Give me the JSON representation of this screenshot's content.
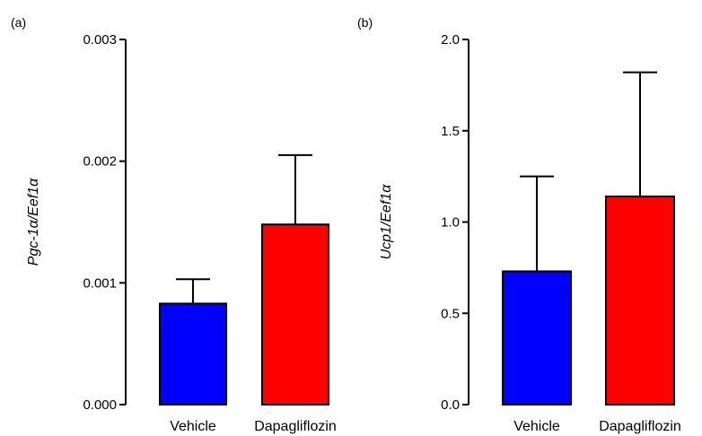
{
  "chart_data": [
    {
      "panel_label": "(a)",
      "type": "bar",
      "categories": [
        "Vehicle",
        "Dapagliflozin"
      ],
      "values": [
        0.00083,
        0.00148
      ],
      "errors": [
        0.0002,
        0.00057
      ],
      "colors": [
        "#0000ff",
        "#ff0000"
      ],
      "ylabel": "Pgc-1α/Eef1α",
      "ylim": [
        0,
        0.003
      ],
      "yticks": [
        "0.000",
        "0.001",
        "0.002",
        "0.003"
      ],
      "yticks_values": [
        0,
        0.001,
        0.002,
        0.003
      ],
      "grid": false,
      "legend": "none"
    },
    {
      "panel_label": "(b)",
      "type": "bar",
      "categories": [
        "Vehicle",
        "Dapagliflozin"
      ],
      "values": [
        0.73,
        1.14
      ],
      "errors": [
        0.52,
        0.68
      ],
      "colors": [
        "#0000ff",
        "#ff0000"
      ],
      "ylabel": "Ucp1/Eef1α",
      "ylim": [
        0,
        2.0
      ],
      "yticks": [
        "0.0",
        "0.5",
        "1.0",
        "1.5",
        "2.0"
      ],
      "yticks_values": [
        0,
        0.5,
        1.0,
        1.5,
        2.0
      ],
      "grid": false,
      "legend": "none"
    }
  ]
}
